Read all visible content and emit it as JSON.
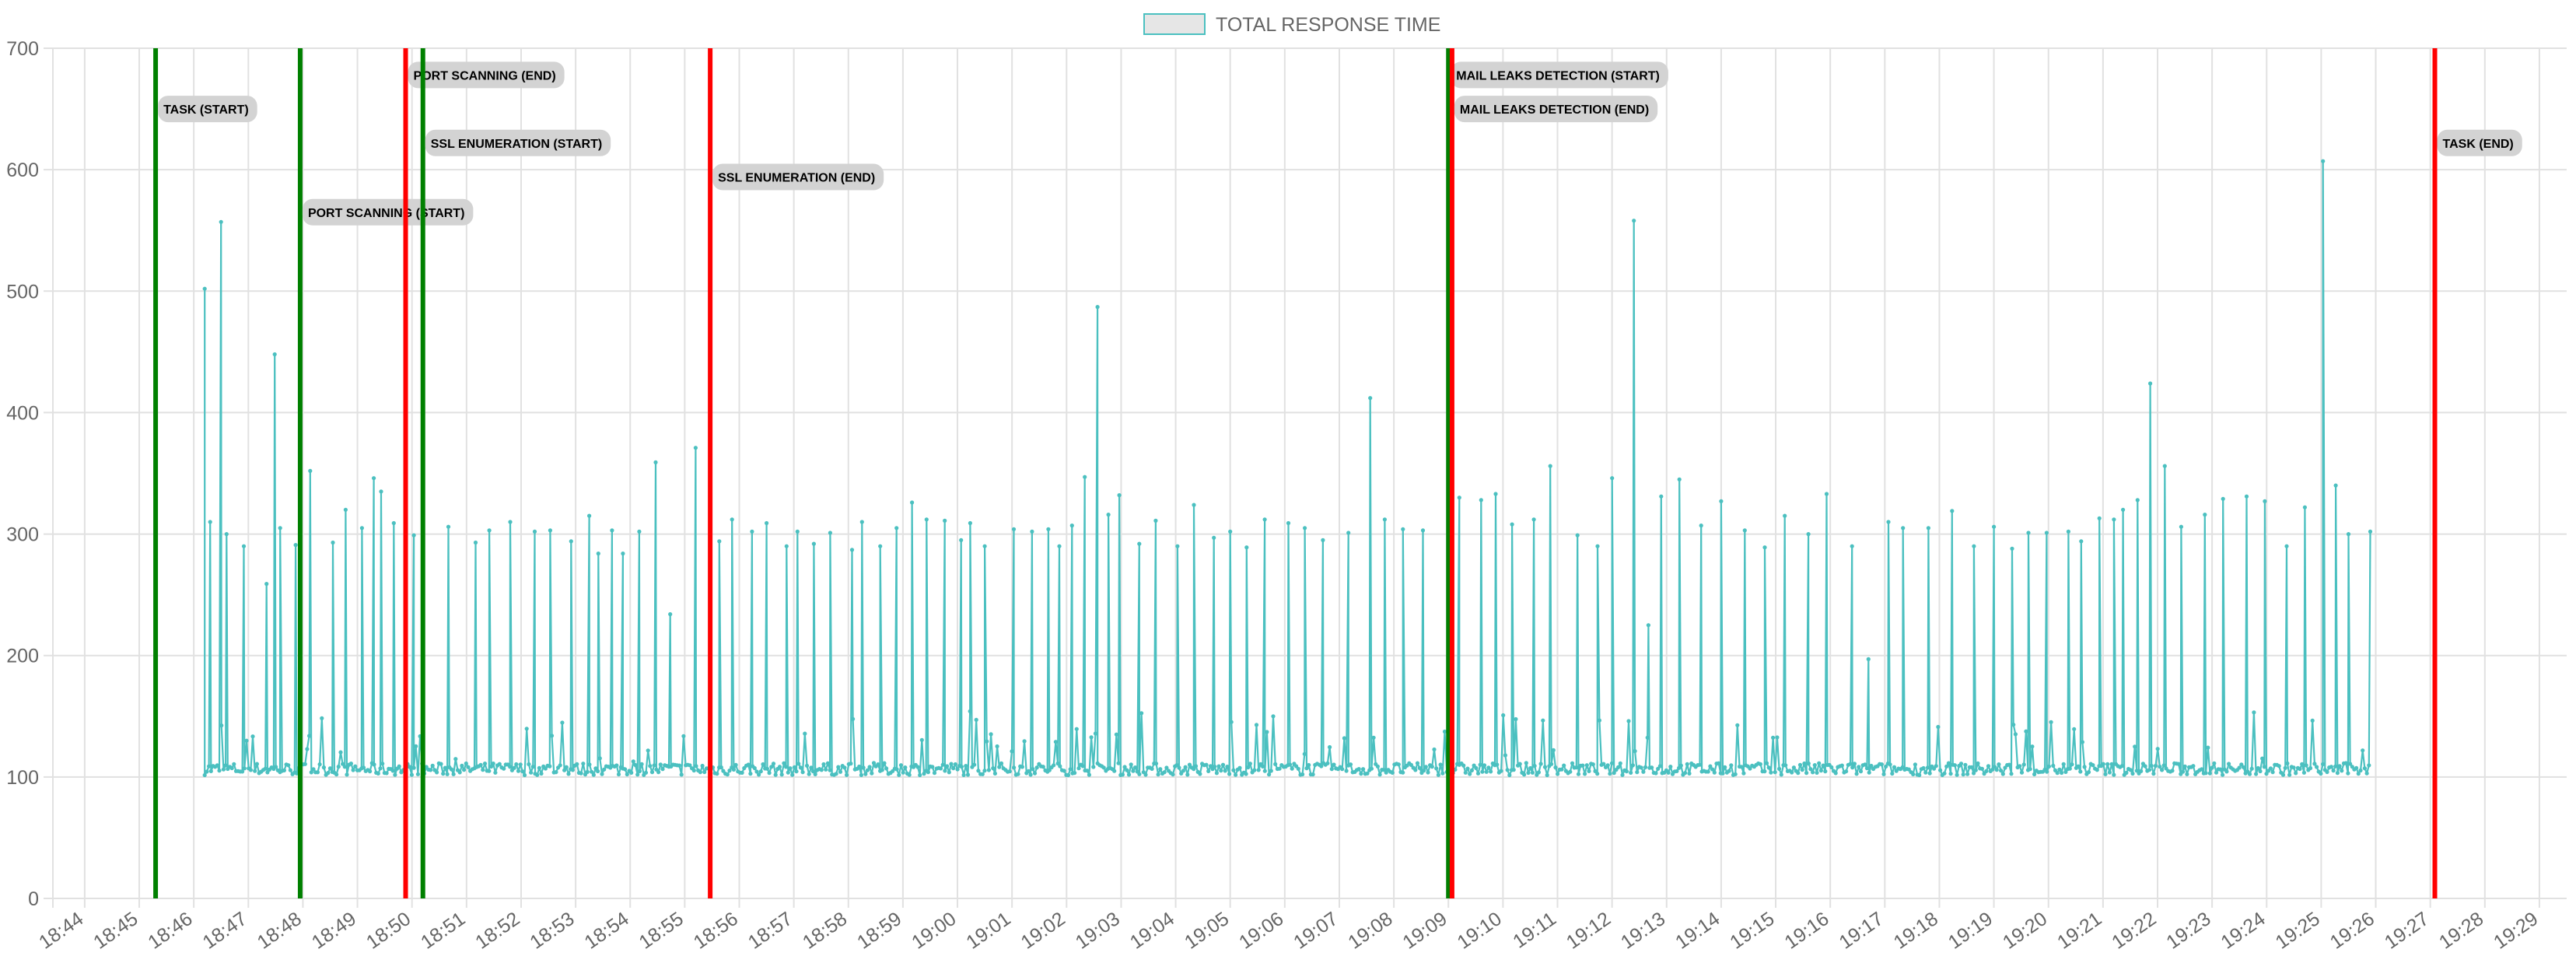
{
  "chart_data": {
    "type": "line",
    "legend": {
      "position": "top",
      "label": "TOTAL RESPONSE TIME"
    },
    "series": [
      {
        "name": "TOTAL RESPONSE TIME",
        "color": "#4bc0c0",
        "fill": "#e6e6e6",
        "x_range": [
          "18:46:12",
          "19:25:54"
        ],
        "baseline": 106,
        "spikes": [
          {
            "t": "18:46:12",
            "y": 502
          },
          {
            "t": "18:46:18",
            "y": 310
          },
          {
            "t": "18:46:30",
            "y": 557
          },
          {
            "t": "18:46:36",
            "y": 300
          },
          {
            "t": "18:46:55",
            "y": 290
          },
          {
            "t": "18:47:20",
            "y": 259
          },
          {
            "t": "18:47:29",
            "y": 448
          },
          {
            "t": "18:47:35",
            "y": 305
          },
          {
            "t": "18:47:52",
            "y": 291
          },
          {
            "t": "18:48:08",
            "y": 352
          },
          {
            "t": "18:48:33",
            "y": 293
          },
          {
            "t": "18:48:47",
            "y": 320
          },
          {
            "t": "18:49:05",
            "y": 305
          },
          {
            "t": "18:49:18",
            "y": 346
          },
          {
            "t": "18:49:26",
            "y": 335
          },
          {
            "t": "18:49:40",
            "y": 309
          },
          {
            "t": "18:50:02",
            "y": 299
          },
          {
            "t": "18:50:40",
            "y": 306
          },
          {
            "t": "18:51:10",
            "y": 293
          },
          {
            "t": "18:51:25",
            "y": 303
          },
          {
            "t": "18:51:48",
            "y": 310
          },
          {
            "t": "18:52:15",
            "y": 302
          },
          {
            "t": "18:52:32",
            "y": 303
          },
          {
            "t": "18:52:55",
            "y": 294
          },
          {
            "t": "18:53:15",
            "y": 315
          },
          {
            "t": "18:53:25",
            "y": 284
          },
          {
            "t": "18:53:40",
            "y": 303
          },
          {
            "t": "18:53:52",
            "y": 284
          },
          {
            "t": "18:54:10",
            "y": 302
          },
          {
            "t": "18:54:28",
            "y": 359
          },
          {
            "t": "18:54:44",
            "y": 234
          },
          {
            "t": "18:55:12",
            "y": 371
          },
          {
            "t": "18:55:38",
            "y": 294
          },
          {
            "t": "18:55:52",
            "y": 312
          },
          {
            "t": "18:56:14",
            "y": 302
          },
          {
            "t": "18:56:30",
            "y": 309
          },
          {
            "t": "18:56:52",
            "y": 290
          },
          {
            "t": "18:57:04",
            "y": 302
          },
          {
            "t": "18:57:22",
            "y": 292
          },
          {
            "t": "18:57:40",
            "y": 301
          },
          {
            "t": "18:58:04",
            "y": 287
          },
          {
            "t": "18:58:15",
            "y": 310
          },
          {
            "t": "18:58:35",
            "y": 290
          },
          {
            "t": "18:58:53",
            "y": 305
          },
          {
            "t": "18:59:10",
            "y": 326
          },
          {
            "t": "18:59:26",
            "y": 312
          },
          {
            "t": "18:59:46",
            "y": 311
          },
          {
            "t": "19:00:04",
            "y": 295
          },
          {
            "t": "19:00:14",
            "y": 309
          },
          {
            "t": "19:00:30",
            "y": 290
          },
          {
            "t": "19:01:02",
            "y": 304
          },
          {
            "t": "19:01:22",
            "y": 302
          },
          {
            "t": "19:01:40",
            "y": 304
          },
          {
            "t": "19:01:52",
            "y": 290
          },
          {
            "t": "19:02:06",
            "y": 307
          },
          {
            "t": "19:02:20",
            "y": 347
          },
          {
            "t": "19:02:34",
            "y": 487
          },
          {
            "t": "19:02:46",
            "y": 316
          },
          {
            "t": "19:02:58",
            "y": 332
          },
          {
            "t": "19:03:20",
            "y": 292
          },
          {
            "t": "19:03:38",
            "y": 311
          },
          {
            "t": "19:04:02",
            "y": 290
          },
          {
            "t": "19:04:20",
            "y": 324
          },
          {
            "t": "19:04:42",
            "y": 297
          },
          {
            "t": "19:05:00",
            "y": 302
          },
          {
            "t": "19:05:18",
            "y": 289
          },
          {
            "t": "19:05:38",
            "y": 312
          },
          {
            "t": "19:06:04",
            "y": 309
          },
          {
            "t": "19:06:22",
            "y": 305
          },
          {
            "t": "19:06:42",
            "y": 295
          },
          {
            "t": "19:07:10",
            "y": 301
          },
          {
            "t": "19:07:34",
            "y": 412
          },
          {
            "t": "19:07:50",
            "y": 312
          },
          {
            "t": "19:08:10",
            "y": 304
          },
          {
            "t": "19:08:32",
            "y": 303
          },
          {
            "t": "19:09:12",
            "y": 330
          },
          {
            "t": "19:09:36",
            "y": 328
          },
          {
            "t": "19:09:52",
            "y": 333
          },
          {
            "t": "19:10:10",
            "y": 308
          },
          {
            "t": "19:10:34",
            "y": 312
          },
          {
            "t": "19:10:52",
            "y": 356
          },
          {
            "t": "19:11:22",
            "y": 299
          },
          {
            "t": "19:11:44",
            "y": 290
          },
          {
            "t": "19:12:00",
            "y": 346
          },
          {
            "t": "19:12:24",
            "y": 558
          },
          {
            "t": "19:12:40",
            "y": 225
          },
          {
            "t": "19:12:54",
            "y": 331
          },
          {
            "t": "19:13:14",
            "y": 345
          },
          {
            "t": "19:13:38",
            "y": 307
          },
          {
            "t": "19:14:00",
            "y": 327
          },
          {
            "t": "19:14:26",
            "y": 303
          },
          {
            "t": "19:14:48",
            "y": 289
          },
          {
            "t": "19:15:10",
            "y": 315
          },
          {
            "t": "19:15:36",
            "y": 300
          },
          {
            "t": "19:15:56",
            "y": 333
          },
          {
            "t": "19:16:24",
            "y": 290
          },
          {
            "t": "19:16:42",
            "y": 197
          },
          {
            "t": "19:17:04",
            "y": 310
          },
          {
            "t": "19:17:20",
            "y": 305
          },
          {
            "t": "19:17:48",
            "y": 305
          },
          {
            "t": "19:18:14",
            "y": 319
          },
          {
            "t": "19:18:38",
            "y": 290
          },
          {
            "t": "19:19:00",
            "y": 306
          },
          {
            "t": "19:19:20",
            "y": 288
          },
          {
            "t": "19:19:38",
            "y": 301
          },
          {
            "t": "19:19:58",
            "y": 301
          },
          {
            "t": "19:20:22",
            "y": 302
          },
          {
            "t": "19:20:36",
            "y": 294
          },
          {
            "t": "19:20:56",
            "y": 313
          },
          {
            "t": "19:21:12",
            "y": 312
          },
          {
            "t": "19:21:22",
            "y": 320
          },
          {
            "t": "19:21:38",
            "y": 328
          },
          {
            "t": "19:21:52",
            "y": 424
          },
          {
            "t": "19:22:08",
            "y": 356
          },
          {
            "t": "19:22:26",
            "y": 306
          },
          {
            "t": "19:22:52",
            "y": 316
          },
          {
            "t": "19:23:12",
            "y": 329
          },
          {
            "t": "19:23:38",
            "y": 331
          },
          {
            "t": "19:23:58",
            "y": 327
          },
          {
            "t": "19:24:22",
            "y": 290
          },
          {
            "t": "19:24:42",
            "y": 322
          },
          {
            "t": "19:25:02",
            "y": 607
          },
          {
            "t": "19:25:16",
            "y": 340
          },
          {
            "t": "19:25:30",
            "y": 300
          },
          {
            "t": "19:25:54",
            "y": 302
          }
        ]
      }
    ],
    "x_axis": {
      "type": "time",
      "min": "18:43:25",
      "max": "19:29:30",
      "ticks": [
        "18:44",
        "18:45",
        "18:46",
        "18:47",
        "18:48",
        "18:49",
        "18:50",
        "18:51",
        "18:52",
        "18:53",
        "18:54",
        "18:55",
        "18:56",
        "18:57",
        "18:58",
        "18:59",
        "19:00",
        "19:01",
        "19:02",
        "19:03",
        "19:04",
        "19:05",
        "19:06",
        "19:07",
        "19:08",
        "19:09",
        "19:10",
        "19:11",
        "19:12",
        "19:13",
        "19:14",
        "19:15",
        "19:16",
        "19:17",
        "19:18",
        "19:19",
        "19:20",
        "19:21",
        "19:22",
        "19:23",
        "19:24",
        "19:25",
        "19:26",
        "19:27",
        "19:28",
        "19:29"
      ]
    },
    "y_axis": {
      "min": 0,
      "max": 700,
      "step": 100
    },
    "grid": true,
    "event_markers": [
      {
        "label": "TASK (START)",
        "time": "18:45:18",
        "color": "#008000",
        "label_y": 650
      },
      {
        "label": "PORT SCANNING (START)",
        "time": "18:47:57",
        "color": "#008000",
        "label_y": 565
      },
      {
        "label": "PORT SCANNING (END)",
        "time": "18:49:53",
        "color": "#ff0000",
        "label_y": 678
      },
      {
        "label": "SSL ENUMERATION (START)",
        "time": "18:50:12",
        "color": "#008000",
        "label_y": 622
      },
      {
        "label": "SSL ENUMERATION (END)",
        "time": "18:55:28",
        "color": "#ff0000",
        "label_y": 594
      },
      {
        "label": "MAIL LEAKS DETECTION (START)",
        "time": "19:09:00",
        "color": "#008000",
        "label_y": 678
      },
      {
        "label": "MAIL LEAKS DETECTION (END)",
        "time": "19:09:04",
        "color": "#ff0000",
        "label_y": 650
      },
      {
        "label": "TASK (END)",
        "time": "19:27:05",
        "color": "#ff0000",
        "label_y": 622
      }
    ]
  }
}
